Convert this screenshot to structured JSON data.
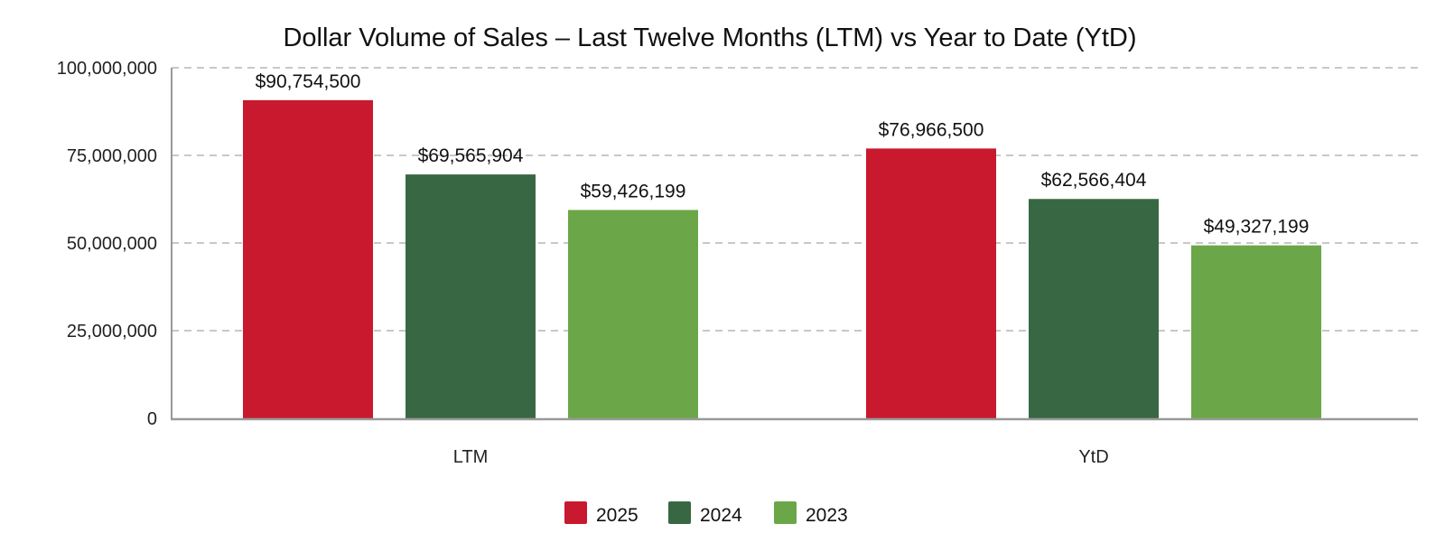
{
  "chart_data": {
    "type": "bar",
    "title": "Dollar Volume of Sales – Last Twelve Months (LTM) vs Year to Date (YtD)",
    "xlabel": "",
    "ylabel": "",
    "categories": [
      "LTM",
      "YtD"
    ],
    "ylim": [
      0,
      100000000
    ],
    "yticks": [
      0,
      25000000,
      50000000,
      75000000,
      100000000
    ],
    "ytick_labels": [
      "0",
      "25,000,000",
      "50,000,000",
      "75,000,000",
      "100,000,000"
    ],
    "grid": true,
    "legend_position": "bottom-center",
    "series": [
      {
        "name": "2025",
        "color": "#c8192e",
        "values": [
          90754500,
          76966500
        ],
        "labels": [
          "$90,754,500",
          "$76,966,500"
        ]
      },
      {
        "name": "2024",
        "color": "#386843",
        "values": [
          69565904,
          62566404
        ],
        "labels": [
          "$69,565,904",
          "$62,566,404"
        ]
      },
      {
        "name": "2023",
        "color": "#6ba748",
        "values": [
          59426199,
          49327199
        ],
        "labels": [
          "$59,426,199",
          "$49,327,199"
        ]
      }
    ]
  }
}
